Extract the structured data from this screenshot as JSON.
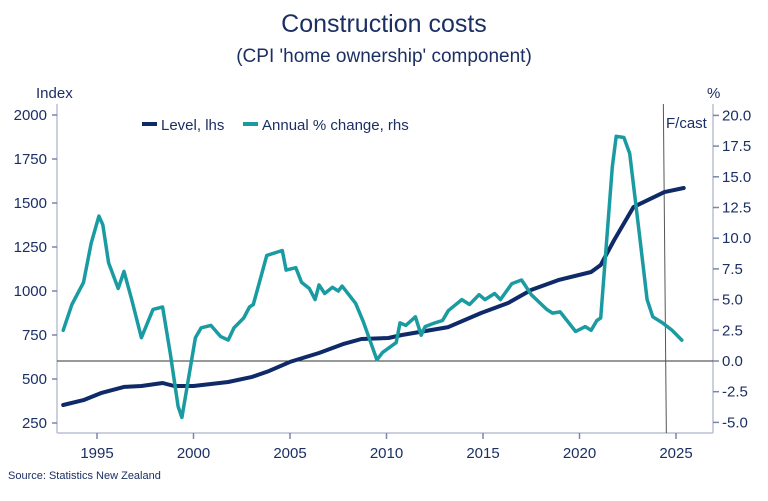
{
  "chart_data": {
    "type": "line",
    "title": "Construction costs",
    "subtitle": "(CPI 'home ownership' component)",
    "source": "Source: Statistics New Zealand",
    "left_axis": {
      "label": "Index",
      "ylim": [
        200,
        2050
      ],
      "ticks": [
        "250",
        "500",
        "750",
        "1000",
        "1250",
        "1500",
        "1750",
        "2000"
      ]
    },
    "right_axis": {
      "label": "%",
      "ylim": [
        -6,
        21
      ],
      "ticks": [
        "-5.0",
        "-2.5",
        "0.0",
        "2.5",
        "5.0",
        "7.5",
        "10.0",
        "12.5",
        "15.0",
        "17.5",
        "20.0"
      ]
    },
    "x_axis": {
      "xlim": [
        1993,
        2027
      ],
      "ticks": [
        "1995",
        "2000",
        "2005",
        "2010",
        "2015",
        "2020",
        "2025"
      ]
    },
    "forecast_marker": {
      "x": 2024.5,
      "label": "F/cast"
    },
    "legend": {
      "placement": "top-left"
    },
    "series": [
      {
        "name": "Level, lhs",
        "axis": "left",
        "color": "#0f2a68",
        "x": [
          1993.25,
          1994.3,
          1995.2,
          1996.4,
          1997.3,
          1998.4,
          1999,
          2000,
          2001.8,
          2003,
          2003.9,
          2005,
          2006.5,
          2007.8,
          2008.7,
          2010.1,
          2010.8,
          2013.2,
          2014.9,
          2016.3,
          2017.5,
          2018.9,
          2020.6,
          2021.1,
          2021.8,
          2022.8,
          2024.4,
          2025.4
        ],
        "y": [
          352,
          380,
          420,
          455,
          460,
          477,
          460,
          460,
          483,
          511,
          545,
          597,
          648,
          700,
          727,
          733,
          750,
          795,
          875,
          932,
          1006,
          1062,
          1108,
          1148,
          1290,
          1477,
          1562,
          1585
        ]
      },
      {
        "name": "Annual % change, rhs",
        "axis": "right",
        "color": "#1a9ba1",
        "x": [
          1993.25,
          1993.7,
          1994.3,
          1994.7,
          1995.1,
          1995.3,
          1995.6,
          1996.1,
          1996.4,
          1996.8,
          1997.3,
          1997.9,
          1998.4,
          1998.8,
          1999.2,
          1999.4,
          2000.1,
          2000.4,
          2000.9,
          2001.4,
          2001.8,
          2002.1,
          2002.6,
          2002.9,
          2003.1,
          2003.8,
          2004.6,
          2004.8,
          2005.3,
          2005.6,
          2006,
          2006.3,
          2006.5,
          2006.8,
          2007.2,
          2007.5,
          2007.7,
          2008.4,
          2008.8,
          2009.5,
          2009.8,
          2010.5,
          2010.7,
          2011,
          2011.5,
          2011.8,
          2012,
          2012.5,
          2012.9,
          2013.2,
          2013.9,
          2014.3,
          2014.8,
          2015.1,
          2015.6,
          2015.9,
          2016.5,
          2017,
          2017.5,
          2018.3,
          2018.6,
          2019,
          2019.8,
          2020.3,
          2020.6,
          2020.9,
          2021.1,
          2021.7,
          2021.9,
          2022.3,
          2022.6,
          2023.1,
          2023.5,
          2023.8,
          2024.3,
          2024.8,
          2025.3
        ],
        "y": [
          2.5,
          4.6,
          6.4,
          9.6,
          11.8,
          11.1,
          8.0,
          5.9,
          7.3,
          5.0,
          1.9,
          4.2,
          4.4,
          0.6,
          -3.7,
          -4.6,
          1.9,
          2.7,
          2.9,
          2.0,
          1.7,
          2.7,
          3.5,
          4.4,
          4.6,
          8.6,
          9.0,
          7.4,
          7.6,
          6.4,
          5.9,
          5.0,
          6.2,
          5.5,
          6.0,
          5.7,
          6.1,
          4.7,
          3.2,
          0.1,
          0.7,
          1.5,
          3.1,
          2.9,
          3.6,
          2.1,
          2.8,
          3.1,
          3.3,
          4.1,
          5.0,
          4.6,
          5.4,
          5.0,
          5.5,
          5.0,
          6.3,
          6.6,
          5.4,
          4.2,
          3.9,
          4.0,
          2.4,
          2.8,
          2.5,
          3.3,
          3.5,
          15.8,
          18.3,
          18.2,
          16.9,
          10.4,
          5.0,
          3.6,
          3.1,
          2.5,
          1.7
        ]
      }
    ]
  }
}
